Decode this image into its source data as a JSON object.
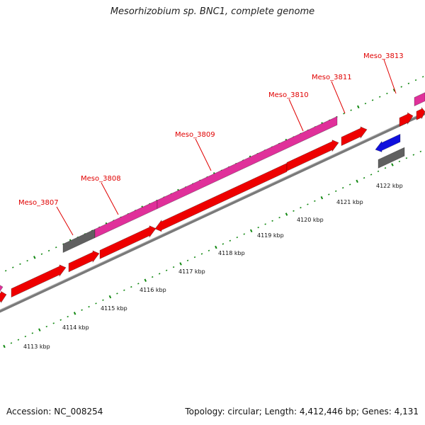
{
  "title": "Mesorhizobium sp. BNC1, complete genome",
  "footer": {
    "accession": "Accession: NC_008254",
    "summary": "Topology: circular; Length: 4,412,446 bp; Genes: 4,131"
  },
  "colors": {
    "cds": "#ee0000",
    "gene": "#e0309a",
    "other": "#606060",
    "blue": "#1010dd",
    "backbone": "#888888",
    "label": "#e00000",
    "ruler": "#118811"
  },
  "gene_labels": [
    "Meso_3807",
    "Meso_3808",
    "Meso_3809",
    "Meso_3810",
    "Meso_3811",
    "Meso_3813"
  ],
  "ruler_labels": [
    "4113 kbp",
    "4114 kbp",
    "4115 kbp",
    "4116 kbp",
    "4117 kbp",
    "4118 kbp",
    "4119 kbp",
    "4120 kbp",
    "4121 kbp",
    "4122 kbp"
  ]
}
